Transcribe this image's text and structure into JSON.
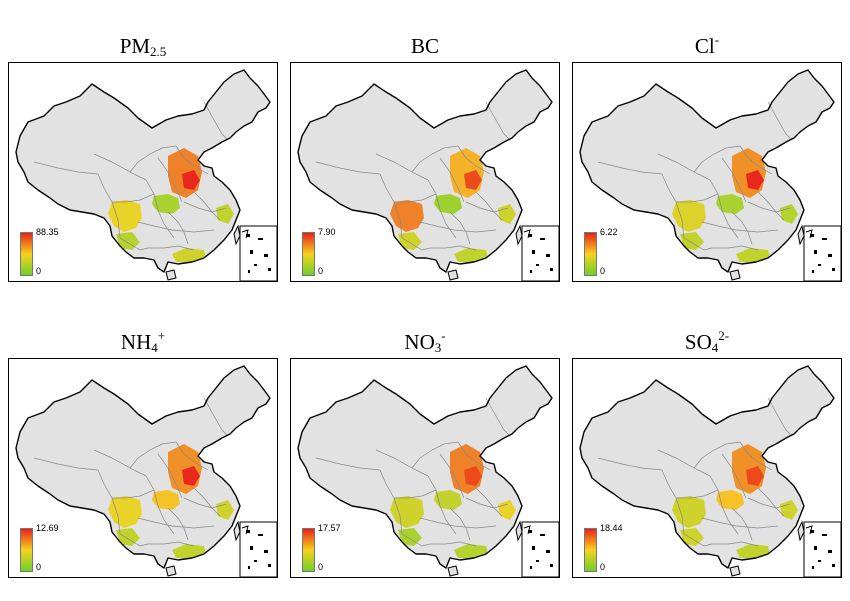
{
  "colors": {
    "background": "#e2e2e2",
    "boundary": "#888888",
    "outline": "#000000",
    "scale_low": "#6fcf2a",
    "scale_mid": "#f6d21d",
    "scale_high": "#e8231c"
  },
  "panels": [
    {
      "id": "pm25",
      "title_base": "PM",
      "title_sub": "2.5",
      "title_sup": "",
      "legend_max": "88.35",
      "legend_min": "0"
    },
    {
      "id": "bc",
      "title_base": "BC",
      "title_sub": "",
      "title_sup": "",
      "legend_max": "7.90",
      "legend_min": "0"
    },
    {
      "id": "cl",
      "title_base": "Cl",
      "title_sub": "",
      "title_sup": "-",
      "legend_max": "6.22",
      "legend_min": "0"
    },
    {
      "id": "nh4",
      "title_base": "NH",
      "title_sub": "4",
      "title_sup": "+",
      "legend_max": "12.69",
      "legend_min": "0"
    },
    {
      "id": "no3",
      "title_base": "NO",
      "title_sub": "3",
      "title_sup": "-",
      "legend_max": "17.57",
      "legend_min": "0"
    },
    {
      "id": "so4",
      "title_base": "SO",
      "title_sub": "4",
      "title_sup": "2-",
      "legend_max": "18.44",
      "legend_min": "0"
    }
  ]
}
